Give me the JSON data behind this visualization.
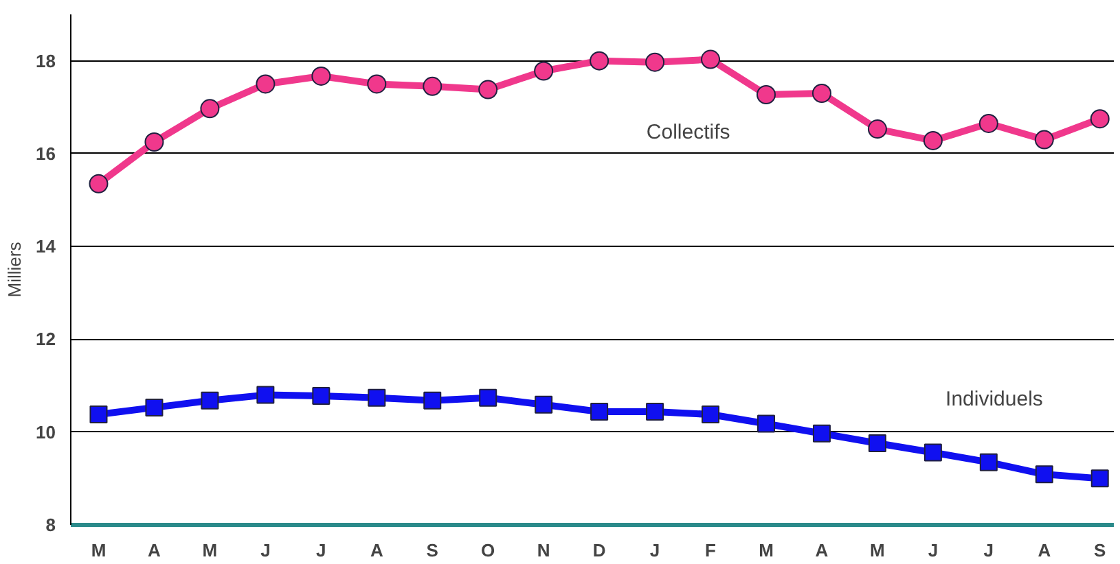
{
  "chart_data": {
    "type": "line",
    "ylabel": "Milliers",
    "categories": [
      "M",
      "A",
      "M",
      "J",
      "J",
      "A",
      "S",
      "O",
      "N",
      "D",
      "J",
      "F",
      "M",
      "A",
      "M",
      "J",
      "J",
      "A",
      "S"
    ],
    "ylim": [
      8,
      19
    ],
    "yticks": [
      8,
      10,
      12,
      14,
      16,
      18
    ],
    "grid": "y",
    "legend": false,
    "series": [
      {
        "name": "Collectifs",
        "color": "#f0388c",
        "marker": "circle",
        "values": [
          15.35,
          16.25,
          16.97,
          17.5,
          17.67,
          17.5,
          17.45,
          17.38,
          17.78,
          18.0,
          17.97,
          18.03,
          17.27,
          17.3,
          16.53,
          16.28,
          16.65,
          16.3,
          16.75
        ]
      },
      {
        "name": "Individuels",
        "color": "#1010f0",
        "marker": "square",
        "values": [
          10.38,
          10.53,
          10.68,
          10.8,
          10.78,
          10.74,
          10.68,
          10.74,
          10.59,
          10.44,
          10.44,
          10.38,
          10.18,
          9.97,
          9.76,
          9.56,
          9.35,
          9.09,
          9.0
        ]
      }
    ]
  }
}
